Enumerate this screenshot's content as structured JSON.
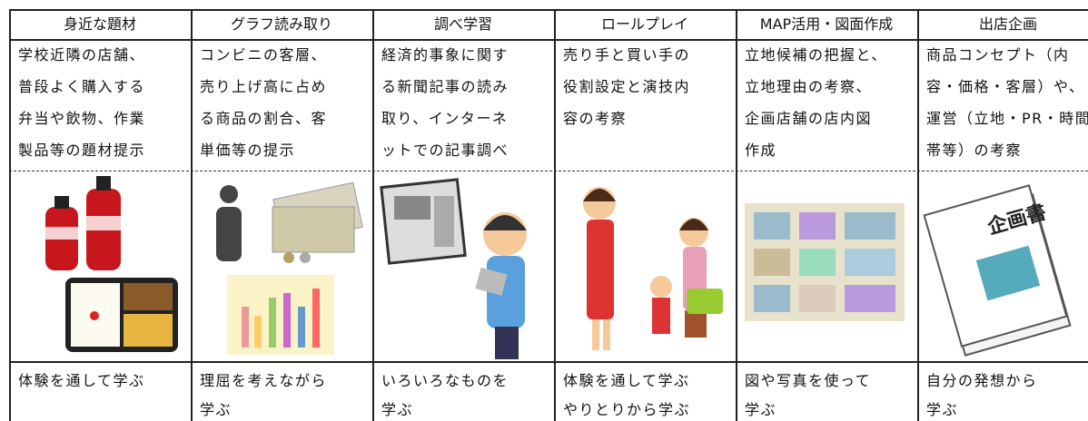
{
  "table": {
    "headers": [
      "身近な題材",
      "グラフ読み取り",
      "調べ学習",
      "ロールプレイ",
      "MAP活用・図面作成",
      "出店企画"
    ],
    "descriptions": [
      [
        "学校近隣の店舗、",
        "普段よく購入する",
        "弁当や飲物、作業",
        "製品等の題材提示"
      ],
      [
        "コンビニの客層、",
        "売り上げ高に占め",
        "る商品の割合、客",
        "単価等の提示"
      ],
      [
        "経済的事象に関す",
        "る新聞記事の読み",
        "取り、インターネ",
        "ットでの記事調べ"
      ],
      [
        "売り手と買い手の",
        "役割設定と演技内",
        "容の考察"
      ],
      [
        "立地候補の把握と、",
        "立地理由の考察、",
        "企画店舗の店内図",
        "作成"
      ],
      [
        "商品コンセプト（内",
        "容・価格・客層）や、",
        "運営（立地・PR・時間",
        "帯等）の考察"
      ]
    ],
    "image_label": "企画書",
    "outcomes": [
      [
        "体験を通して学ぶ"
      ],
      [
        "理屈を考えながら",
        "学ぶ"
      ],
      [
        "いろいろなものを",
        "学ぶ"
      ],
      [
        "体験を通して学ぶ",
        "やりとりから学ぶ"
      ],
      [
        "図や写真を使って",
        "学ぶ"
      ],
      [
        "自分の発想から",
        "学ぶ"
      ]
    ]
  }
}
